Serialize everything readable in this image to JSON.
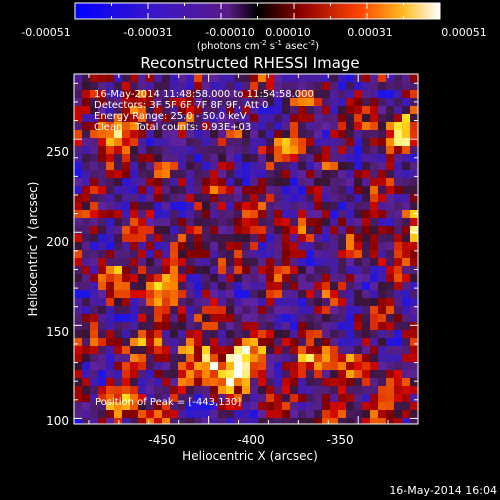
{
  "colorbar": {
    "ticks": [
      "-0.00051",
      "-0.00031",
      "-0.00010",
      "0.00010",
      "0.00031",
      "0.00051"
    ],
    "label_main": "(photons cm",
    "label_sup1": "-2",
    "label_mid1": " s",
    "label_sup2": "-1",
    "label_mid2": " asec",
    "label_sup3": "-2",
    "label_end": ")"
  },
  "chart_data": {
    "type": "heatmap",
    "title": "Reconstructed RHESSI Image",
    "xlabel": "Heliocentric X (arcsec)",
    "ylabel": "Heliocentric Y (arcsec)",
    "xlim": [
      -495,
      -380
    ],
    "ylim": [
      97,
      285
    ],
    "xticks": [
      -450,
      -400,
      -350
    ],
    "yticks": [
      100,
      150,
      200,
      250
    ],
    "colorbar_range": [
      -0.00051,
      0.00051
    ],
    "annotations": [
      "16-May-2014 11:48:58.000 to 11:54:58.000",
      "Detectors: 3F 5F 6F 7F 8F 9F, Att 0",
      "Energy Range: 25.0 - 50.0 keV",
      "Clean    Total counts: 9.93E+03"
    ],
    "peak_label": "Position of Peak = [-443,130]",
    "peak": [
      -443,
      130
    ]
  },
  "footer_timestamp": "16-May-2014 16:04"
}
